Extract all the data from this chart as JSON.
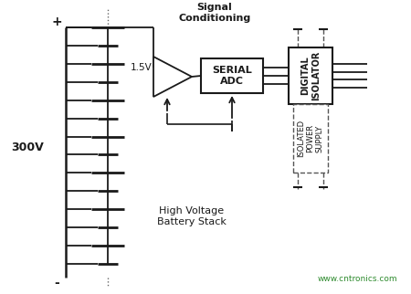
{
  "bg_color": "#ffffff",
  "line_color": "#1a1a1a",
  "text_color": "#1a1a1a",
  "green_text_color": "#2e8b2e",
  "watermark": "www.cntronics.com",
  "title_text": "Signal\nConditioning",
  "label_1_5v": "1.5V",
  "label_300v": "300V",
  "label_hvbs": "High Voltage\nBattery Stack",
  "label_serial_adc": "SERIAL\nADC",
  "label_digital_isolator": "DIGITAL\nISOLATOR",
  "label_isolated_power": "ISOLATED\nPOWER\nSUPPLY",
  "plus_label": "+",
  "minus_label": "-",
  "battery_cells": 14,
  "fig_w": 4.5,
  "fig_h": 3.22,
  "dpi": 100
}
